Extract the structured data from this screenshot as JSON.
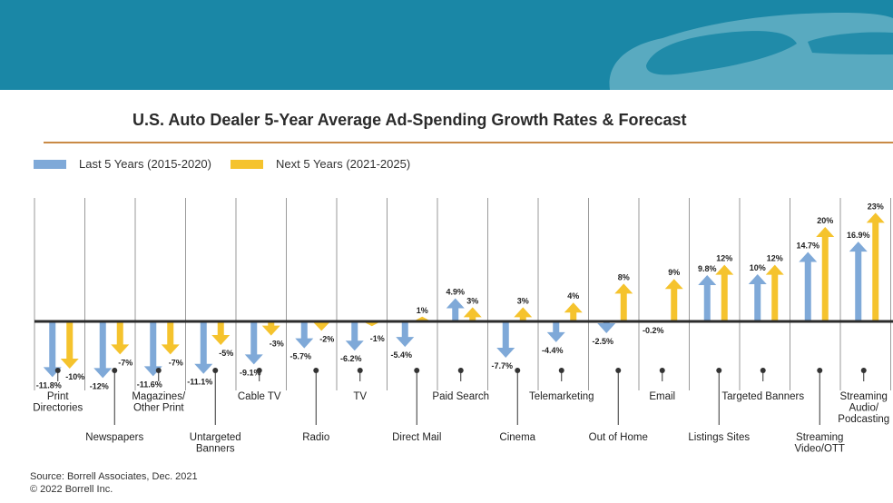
{
  "header": {
    "title": "U.S. Auto Dealer 5-Year Average Ad-Spending Growth Rates & Forecast"
  },
  "legend": {
    "last_label": "Last 5 Years (2015-2020)",
    "next_label": "Next 5 Years (2021-2025)"
  },
  "colors": {
    "banner": "#1a87a6",
    "last": "#7fa9d8",
    "next": "#f5c32d",
    "rule": "#c98a45",
    "axis": "#2b2b2b"
  },
  "chart_data": {
    "type": "bar",
    "title": "U.S. Auto Dealer 5-Year Average Ad-Spending Growth Rates & Forecast",
    "xlabel": "",
    "ylabel": "",
    "ylim": [
      -13,
      25
    ],
    "categories": [
      "Print Directories",
      "Newspapers",
      "Magazines/ Other Print",
      "Untargeted Banners",
      "Cable TV",
      "Radio",
      "TV",
      "Direct Mail",
      "Paid Search",
      "Cinema",
      "Telemarketing",
      "Out of Home",
      "Email",
      "Listings Sites",
      "Targeted Banners",
      "Streaming Video/OTT",
      "Streaming Audio/ Podcasting"
    ],
    "category_lines": [
      [
        "Print",
        "Directories"
      ],
      [
        "Newspapers"
      ],
      [
        "Magazines/",
        "Other Print"
      ],
      [
        "Untargeted",
        "Banners"
      ],
      [
        "Cable TV"
      ],
      [
        "Radio"
      ],
      [
        "TV"
      ],
      [
        "Direct Mail"
      ],
      [
        "Paid Search"
      ],
      [
        "Cinema"
      ],
      [
        "Telemarketing"
      ],
      [
        "Out of Home"
      ],
      [
        "Email"
      ],
      [
        "Listings Sites"
      ],
      [
        "Targeted Banners"
      ],
      [
        "Streaming",
        "Video/OTT"
      ],
      [
        "Streaming",
        "Audio/",
        "Podcasting"
      ]
    ],
    "series": [
      {
        "name": "Last 5 Years (2015-2020)",
        "values": [
          -11.8,
          -12,
          -11.6,
          -11.1,
          -9.1,
          -5.7,
          -6.2,
          -5.4,
          4.9,
          -7.7,
          -4.4,
          -2.5,
          -0.2,
          9.8,
          10,
          14.7,
          16.9
        ],
        "labels": [
          "-11.8%",
          "-12%",
          "-11.6%",
          "-11.1%",
          "-9.1%",
          "-5.7%",
          "-6.2%",
          "-5.4%",
          "4.9%",
          "-7.7%",
          "-4.4%",
          "-2.5%",
          "-0.2%",
          "9.8%",
          "10%",
          "14.7%",
          "16.9%"
        ]
      },
      {
        "name": "Next 5 Years (2021-2025)",
        "values": [
          -10,
          -7,
          -7,
          -5,
          -3,
          -2,
          -1,
          1,
          3,
          3,
          4,
          8,
          9,
          12,
          12,
          20,
          23
        ],
        "labels": [
          "-10%",
          "-7%",
          "-7%",
          "-5%",
          "-3%",
          "-2%",
          "-1%",
          "1%",
          "3%",
          "3%",
          "4%",
          "8%",
          "9%",
          "12%",
          "12%",
          "20%",
          "23%"
        ]
      }
    ]
  },
  "source": {
    "line1": "Source:  Borrell Associates, Dec. 2021",
    "line2": "© 2022 Borrell Inc."
  }
}
